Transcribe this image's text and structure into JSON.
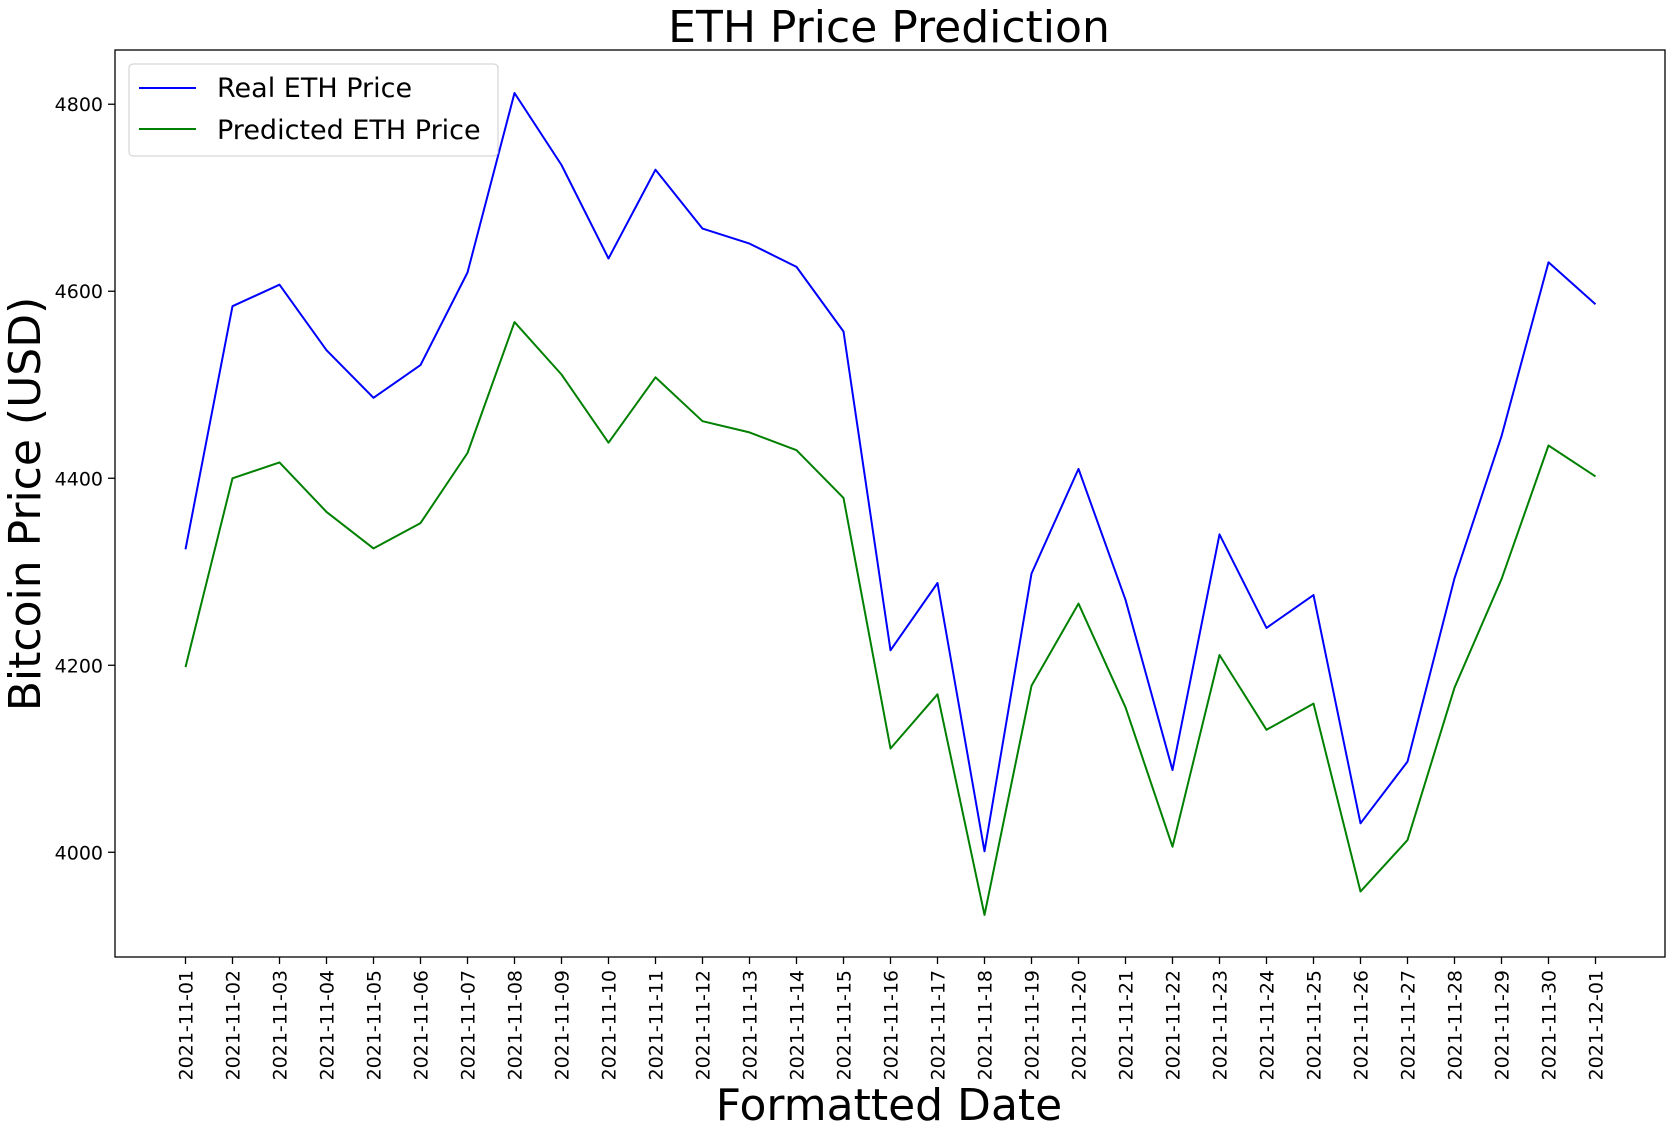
{
  "chart_data": {
    "type": "line",
    "title": "ETH Price Prediction",
    "xlabel": "Formatted Date",
    "ylabel": "Bitcoin Price (USD)",
    "x": [
      "2021-11-01",
      "2021-11-02",
      "2021-11-03",
      "2021-11-04",
      "2021-11-05",
      "2021-11-06",
      "2021-11-07",
      "2021-11-08",
      "2021-11-09",
      "2021-11-10",
      "2021-11-11",
      "2021-11-12",
      "2021-11-13",
      "2021-11-14",
      "2021-11-15",
      "2021-11-16",
      "2021-11-17",
      "2021-11-18",
      "2021-11-19",
      "2021-11-20",
      "2021-11-21",
      "2021-11-22",
      "2021-11-23",
      "2021-11-24",
      "2021-11-25",
      "2021-11-26",
      "2021-11-27",
      "2021-11-28",
      "2021-11-29",
      "2021-11-30",
      "2021-12-01"
    ],
    "ylim": [
      3888,
      4858
    ],
    "yticks": [
      4000,
      4200,
      4400,
      4600,
      4800
    ],
    "legend_position": "top-left",
    "grid": false,
    "series": [
      {
        "name": "Real ETH Price",
        "color": "#0000ff",
        "values": [
          4324,
          4584,
          4607,
          4537,
          4486,
          4521,
          4620,
          4812,
          4735,
          4635,
          4730,
          4667,
          4651,
          4626,
          4557,
          4216,
          4288,
          4001,
          4298,
          4410,
          4270,
          4088,
          4340,
          4240,
          4275,
          4031,
          4097,
          4293,
          4445,
          4631,
          4586
        ]
      },
      {
        "name": "Predicted ETH Price",
        "color": "#008000",
        "values": [
          4198,
          4400,
          4417,
          4364,
          4325,
          4352,
          4427,
          4567,
          4511,
          4438,
          4508,
          4461,
          4449,
          4430,
          4379,
          4111,
          4169,
          3933,
          4178,
          4266,
          4155,
          4006,
          4211,
          4131,
          4159,
          3958,
          4013,
          4176,
          4292,
          4435,
          4402
        ]
      }
    ]
  }
}
